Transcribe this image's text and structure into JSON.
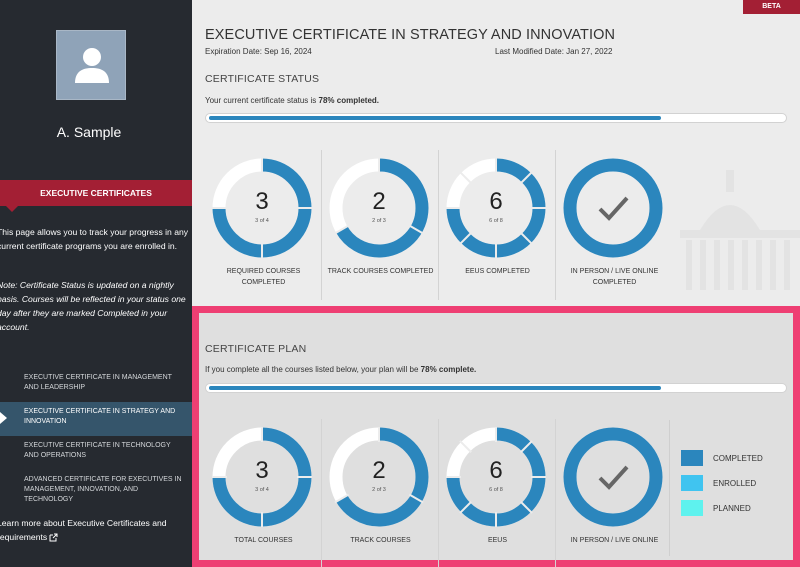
{
  "sidebar": {
    "user_name": "A. Sample",
    "exec_header": "EXECUTIVE CERTIFICATES",
    "description": "This page allows you to track your progress in any current certificate programs you are enrolled in.",
    "note": "Note: Certificate Status is updated on a nightly basis. Courses will be reflected in your status one day after they are marked Completed in your account.",
    "nav": [
      {
        "label": "EXECUTIVE CERTIFICATE IN MANAGEMENT AND LEADERSHIP"
      },
      {
        "label": "EXECUTIVE CERTIFICATE IN STRATEGY AND INNOVATION"
      },
      {
        "label": "EXECUTIVE CERTIFICATE IN TECHNOLOGY AND OPERATIONS"
      },
      {
        "label": "ADVANCED CERTIFICATE FOR EXECUTIVES IN MANAGEMENT, INNOVATION, AND TECHNOLOGY"
      }
    ],
    "learn_more": "Learn more about Executive Certificates and requirements"
  },
  "header": {
    "beta": "BETA",
    "title": "EXECUTIVE CERTIFICATE IN STRATEGY AND INNOVATION",
    "expiration": "Expiration Date:  Sep 16, 2024",
    "last_modified": "Last Modified Date:  Jan 27, 2022"
  },
  "status": {
    "title": "CERTIFICATE STATUS",
    "text_prefix": "Your current certificate status is ",
    "text_bold": "78% completed.",
    "progress": 0.78,
    "donuts": [
      {
        "big": "3",
        "small": "3 of 4",
        "label": "REQUIRED COURSES COMPLETED",
        "fraction": 0.75
      },
      {
        "big": "2",
        "small": "2 of 3",
        "label": "TRACK COURSES COMPLETED",
        "fraction": 0.667
      },
      {
        "big": "6",
        "small": "6 of 8",
        "label": "EEUS COMPLETED",
        "fraction": 0.75
      },
      {
        "big": "",
        "small": "",
        "label": "IN PERSON / LIVE ONLINE COMPLETED",
        "fraction": 1,
        "check": true
      }
    ]
  },
  "plan": {
    "title": "CERTIFICATE PLAN",
    "text_prefix": "If you complete all the courses listed below, your plan will be ",
    "text_bold": "78% complete.",
    "progress": 0.78,
    "donuts": [
      {
        "big": "3",
        "small": "3 of 4",
        "label": "TOTAL COURSES",
        "fraction": 0.75
      },
      {
        "big": "2",
        "small": "2 of 3",
        "label": "TRACK COURSES",
        "fraction": 0.667
      },
      {
        "big": "6",
        "small": "6 of 8",
        "label": "EEUS",
        "fraction": 0.75
      },
      {
        "big": "",
        "small": "",
        "label": "IN PERSON / LIVE ONLINE",
        "fraction": 1,
        "check": true
      }
    ],
    "legend": [
      {
        "label": "COMPLETED",
        "color": "#2b86bd"
      },
      {
        "label": "ENROLLED",
        "color": "#40c4f0"
      },
      {
        "label": "PLANNED",
        "color": "#5ef2ee"
      }
    ]
  },
  "colors": {
    "completed": "#2b86bd",
    "remaining": "#ffffff",
    "accent": "#a31f34",
    "highlight": "#ee3f73"
  }
}
